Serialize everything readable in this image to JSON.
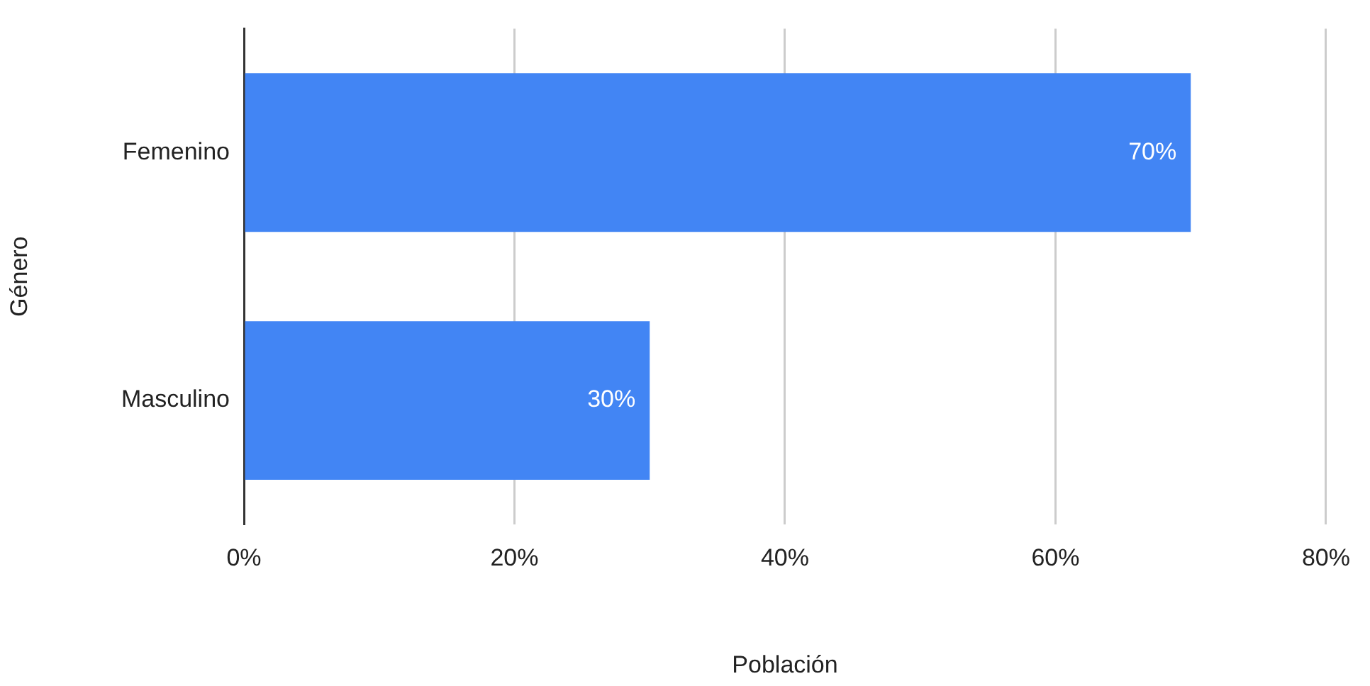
{
  "chart_data": {
    "type": "bar",
    "orientation": "horizontal",
    "xlabel": "Población",
    "ylabel": "Género",
    "categories": [
      "Femenino",
      "Masculino"
    ],
    "series": [
      {
        "color": "#4285f4",
        "values": [
          70,
          30
        ],
        "value_labels": [
          "70%",
          "30%"
        ]
      }
    ],
    "xlim": [
      0,
      80
    ],
    "xticks": [
      {
        "value": 0,
        "label": "0%"
      },
      {
        "value": 20,
        "label": "20%"
      },
      {
        "value": 40,
        "label": "40%"
      },
      {
        "value": 60,
        "label": "60%"
      },
      {
        "value": 80,
        "label": "80%"
      }
    ],
    "grid": "x",
    "legend": false
  }
}
